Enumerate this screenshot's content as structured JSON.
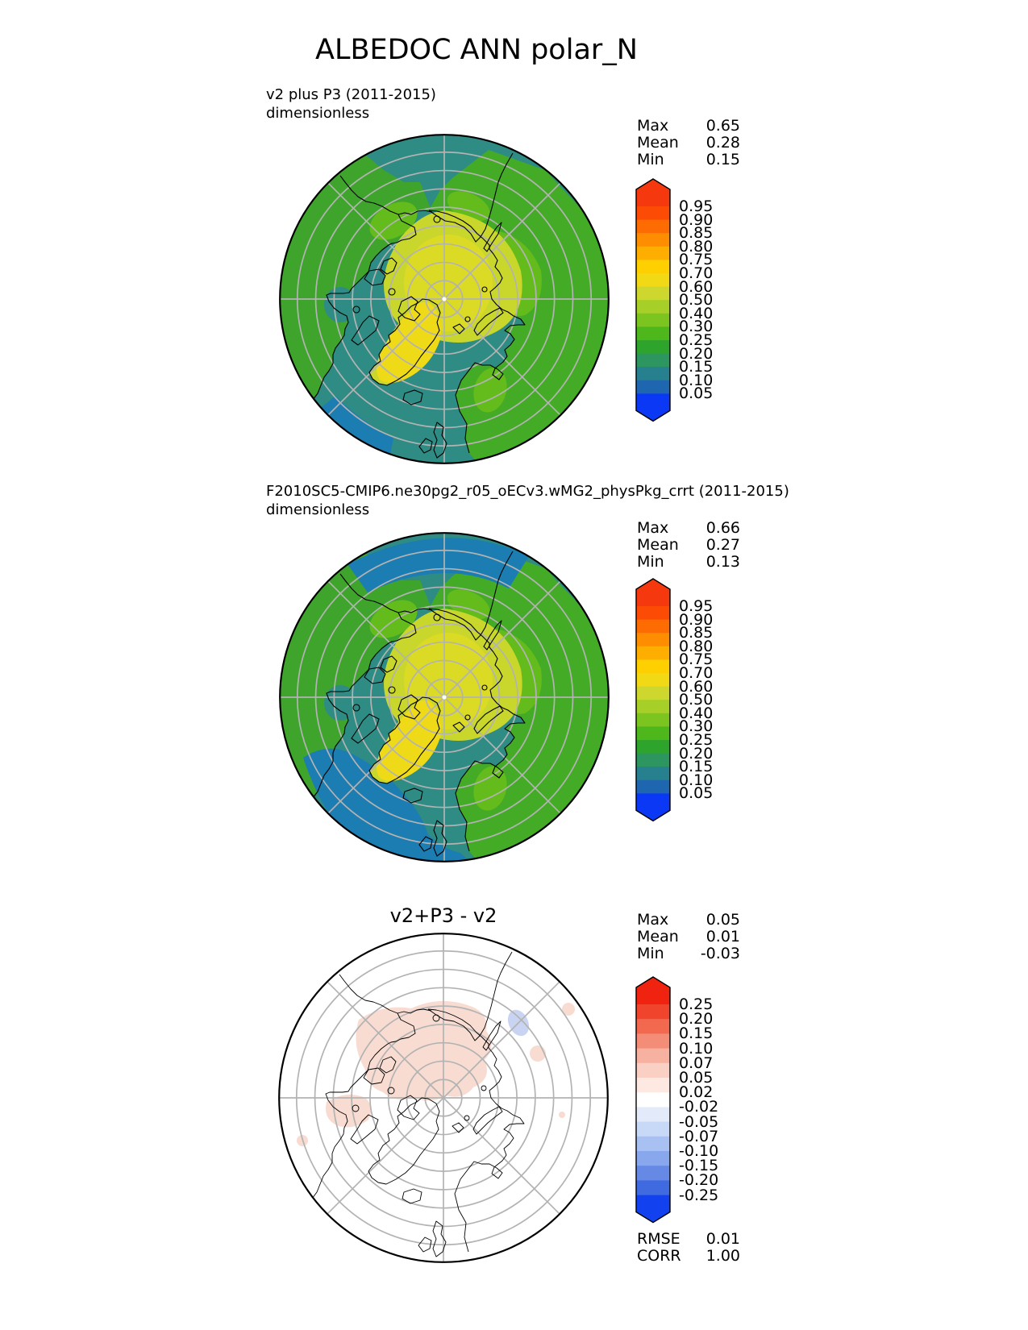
{
  "title": "ALBEDOC ANN polar_N",
  "palette": {
    "ocean_teal": "#2F8C84",
    "ocean_blue": "#1C7DB2",
    "land_green": "#44AB26",
    "land_green2": "#3FA42C",
    "land_bright": "#63BC1C",
    "cap_green": "#C9D62C",
    "cap_core": "#DBDA24",
    "ice_yellow": "#EFDA17",
    "diff_pos_pink": "#F8DCD2",
    "diff_neg_blue": "#C9D4F2",
    "graticule_gray": "#B3B3B3",
    "coast_black": "#000000",
    "diff_bg_white": "#FFFFFF"
  },
  "panels": [
    {
      "label_line1": "v2 plus P3 (2011-2015)",
      "label_line2": "dimensionless",
      "stats": [
        {
          "label": "Max",
          "value": "0.65"
        },
        {
          "label": "Mean",
          "value": "0.28"
        },
        {
          "label": "Min",
          "value": "0.15"
        }
      ],
      "colorbar": {
        "ticks": [
          "0.95",
          "0.90",
          "0.85",
          "0.80",
          "0.75",
          "0.70",
          "0.60",
          "0.50",
          "0.40",
          "0.30",
          "0.25",
          "0.20",
          "0.15",
          "0.10",
          "0.05"
        ],
        "cap_top": "#F5380E",
        "cap_bottom": "#0B38F5",
        "boxes": [
          "#FB4B04",
          "#FD6C03",
          "#FE8D02",
          "#FEAE01",
          "#FED001",
          "#F2D915",
          "#CDD72E",
          "#A6CF28",
          "#7CC521",
          "#4EB71C",
          "#2FA42D",
          "#2D9560",
          "#27808D",
          "#1E66B0"
        ]
      }
    },
    {
      "label_line1": "F2010SC5-CMIP6.ne30pg2_r05_oECv3.wMG2_physPkg_crrt (2011-2015)",
      "label_line2": "dimensionless",
      "stats": [
        {
          "label": "Max",
          "value": "0.66"
        },
        {
          "label": "Mean",
          "value": "0.27"
        },
        {
          "label": "Min",
          "value": "0.13"
        }
      ],
      "colorbar": {
        "ticks": [
          "0.95",
          "0.90",
          "0.85",
          "0.80",
          "0.75",
          "0.70",
          "0.60",
          "0.50",
          "0.40",
          "0.30",
          "0.25",
          "0.20",
          "0.15",
          "0.10",
          "0.05"
        ],
        "cap_top": "#F5380E",
        "cap_bottom": "#0B38F5",
        "boxes": [
          "#FB4B04",
          "#FD6C03",
          "#FE8D02",
          "#FEAE01",
          "#FED001",
          "#F2D915",
          "#CDD72E",
          "#A6CF28",
          "#7CC521",
          "#4EB71C",
          "#2FA42D",
          "#2D9560",
          "#27808D",
          "#1E66B0"
        ]
      }
    },
    {
      "title": "v2+P3 - v2",
      "stats": [
        {
          "label": "Max",
          "value": "0.05"
        },
        {
          "label": "Mean",
          "value": "0.01"
        },
        {
          "label": "Min",
          "value": "-0.03"
        }
      ],
      "extra_stats": [
        {
          "label": "RMSE",
          "value": "0.01"
        },
        {
          "label": "CORR",
          "value": "1.00"
        }
      ],
      "colorbar": {
        "ticks": [
          "0.25",
          "0.20",
          "0.15",
          "0.10",
          "0.07",
          "0.05",
          "0.02",
          "-0.02",
          "-0.05",
          "-0.07",
          "-0.10",
          "-0.15",
          "-0.20",
          "-0.25"
        ],
        "cap_top": "#F02311",
        "cap_bottom": "#1241F0",
        "boxes": [
          "#F1442C",
          "#F26950",
          "#F48D77",
          "#F7B1A0",
          "#FAD0C5",
          "#FDE8E2",
          "#FFFFFF",
          "#E3EBFA",
          "#C8D8F7",
          "#A9C0F2",
          "#88A7EC",
          "#6689E5",
          "#406AE0"
        ]
      }
    }
  ],
  "chart_data": [
    {
      "type": "heatmap",
      "subtype": "north_polar_contour_map",
      "title": "v2 plus P3 (2011-2015)",
      "units": "dimensionless",
      "variable": "ALBEDOC",
      "season": "ANN",
      "region": "polar_N (90N to ~45N, graticule every 5 deg lat, meridians every 45 deg)",
      "stats": {
        "max": 0.65,
        "mean": 0.28,
        "min": 0.15
      },
      "levels": [
        0.05,
        0.1,
        0.15,
        0.2,
        0.25,
        0.3,
        0.4,
        0.5,
        0.6,
        0.7,
        0.75,
        0.8,
        0.85,
        0.9,
        0.95
      ],
      "legend_position": "right vertical colorbar with triangular out-of-range caps",
      "description": "Albedo: teal ocean ~0.15-0.20, green land ~0.25-0.40, yellow-green polar cap ~0.50-0.60, bright yellow Greenland ice sheet ~0.70"
    },
    {
      "type": "heatmap",
      "subtype": "north_polar_contour_map",
      "title": "F2010SC5-CMIP6.ne30pg2_r05_oECv3.wMG2_physPkg_crrt (2011-2015)",
      "units": "dimensionless",
      "variable": "ALBEDOC",
      "season": "ANN",
      "region": "polar_N",
      "stats": {
        "max": 0.66,
        "mean": 0.27,
        "min": 0.13
      },
      "levels": [
        0.05,
        0.1,
        0.15,
        0.2,
        0.25,
        0.3,
        0.4,
        0.5,
        0.6,
        0.7,
        0.75,
        0.8,
        0.85,
        0.9,
        0.95
      ],
      "legend_position": "right vertical colorbar with triangular out-of-range caps",
      "description": "Same field as panel 1 but open ocean (N Pacific and N Atlantic rims) drops to blue ~0.07-0.10"
    },
    {
      "type": "heatmap",
      "subtype": "north_polar_difference_map",
      "title": "v2+P3 - v2",
      "units": "dimensionless",
      "stats": {
        "max": 0.05,
        "mean": 0.01,
        "min": -0.03,
        "rmse": 0.01,
        "corr": 1.0
      },
      "levels": [
        -0.25,
        -0.2,
        -0.15,
        -0.1,
        -0.07,
        -0.05,
        -0.02,
        0.02,
        0.05,
        0.07,
        0.1,
        0.15,
        0.2,
        0.25
      ],
      "legend_position": "right vertical red-white-blue colorbar",
      "description": "Difference map mostly white (|diff|<0.02); faint pink (+0.02..0.05) over Siberia/Barents sector upper-left of pole; small pale blue patch upper-right"
    }
  ]
}
